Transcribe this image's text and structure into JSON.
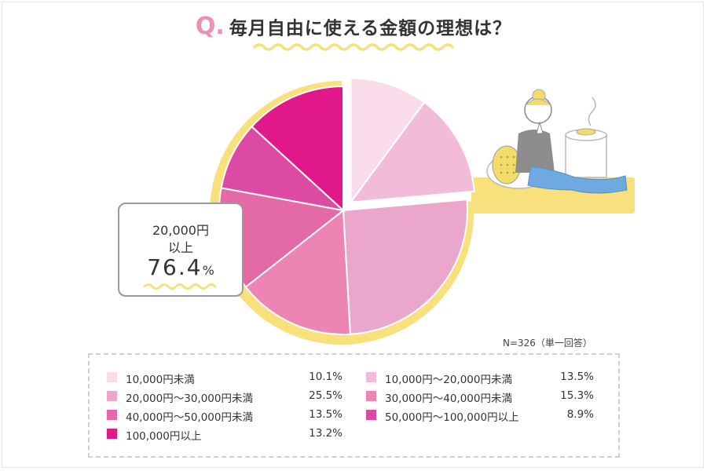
{
  "title": {
    "q": "Q.",
    "text": "毎月自由に使える金額の理想は？"
  },
  "callout": {
    "line1": "20,000円",
    "line2": "以上",
    "pct": "76.4",
    "pct_sign": "%"
  },
  "note": "N=326（単一回答）",
  "colors": {
    "accent": "#ef8fb6",
    "highlight": "#f8e07c"
  },
  "chart_data": {
    "type": "pie",
    "title": "毎月自由に使える金額の理想は？",
    "start": "12 o'clock, clockwise",
    "slices": [
      {
        "label": "10,000円未満",
        "value": 10.1,
        "color": "#fadbea"
      },
      {
        "label": "10,000円～20,000円未満",
        "value": 13.5,
        "color": "#f2bcd9"
      },
      {
        "label": "20,000円～30,000円未満",
        "value": 25.5,
        "color": "#eaa6cb"
      },
      {
        "label": "30,000円～40,000円未満",
        "value": 15.3,
        "color": "#ec85b3"
      },
      {
        "label": "40,000円～50,000円未満",
        "value": 13.5,
        "color": "#e36aa6"
      },
      {
        "label": "50,000円～100,000円以上",
        "value": 8.9,
        "color": "#dd4aa3"
      },
      {
        "label": "100,000円以上",
        "value": 13.2,
        "color": "#e0188a"
      }
    ],
    "exploded_slices": [
      "10,000円未満",
      "10,000円～20,000円未満"
    ],
    "highlight_group": {
      "label": "20,000円以上",
      "value": 76.4
    }
  },
  "legend": [
    {
      "label": "10,000円未満",
      "value": "10.1%",
      "color": "#fadbea"
    },
    {
      "label": "10,000円～20,000円未満",
      "value": "13.5%",
      "color": "#f2bcd9"
    },
    {
      "label": "20,000円～30,000円未満",
      "value": "25.5%",
      "color": "#eaa6cb"
    },
    {
      "label": "30,000円～40,000円未満",
      "value": "15.3%",
      "color": "#ec85b3"
    },
    {
      "label": "40,000円～50,000円未満",
      "value": "13.5%",
      "color": "#e36aa6"
    },
    {
      "label": "50,000円～100,000円以上",
      "value": "8.9%",
      "color": "#dd4aa3"
    },
    {
      "label": "100,000円以上",
      "value": "13.2%",
      "color": "#e0188a"
    }
  ]
}
